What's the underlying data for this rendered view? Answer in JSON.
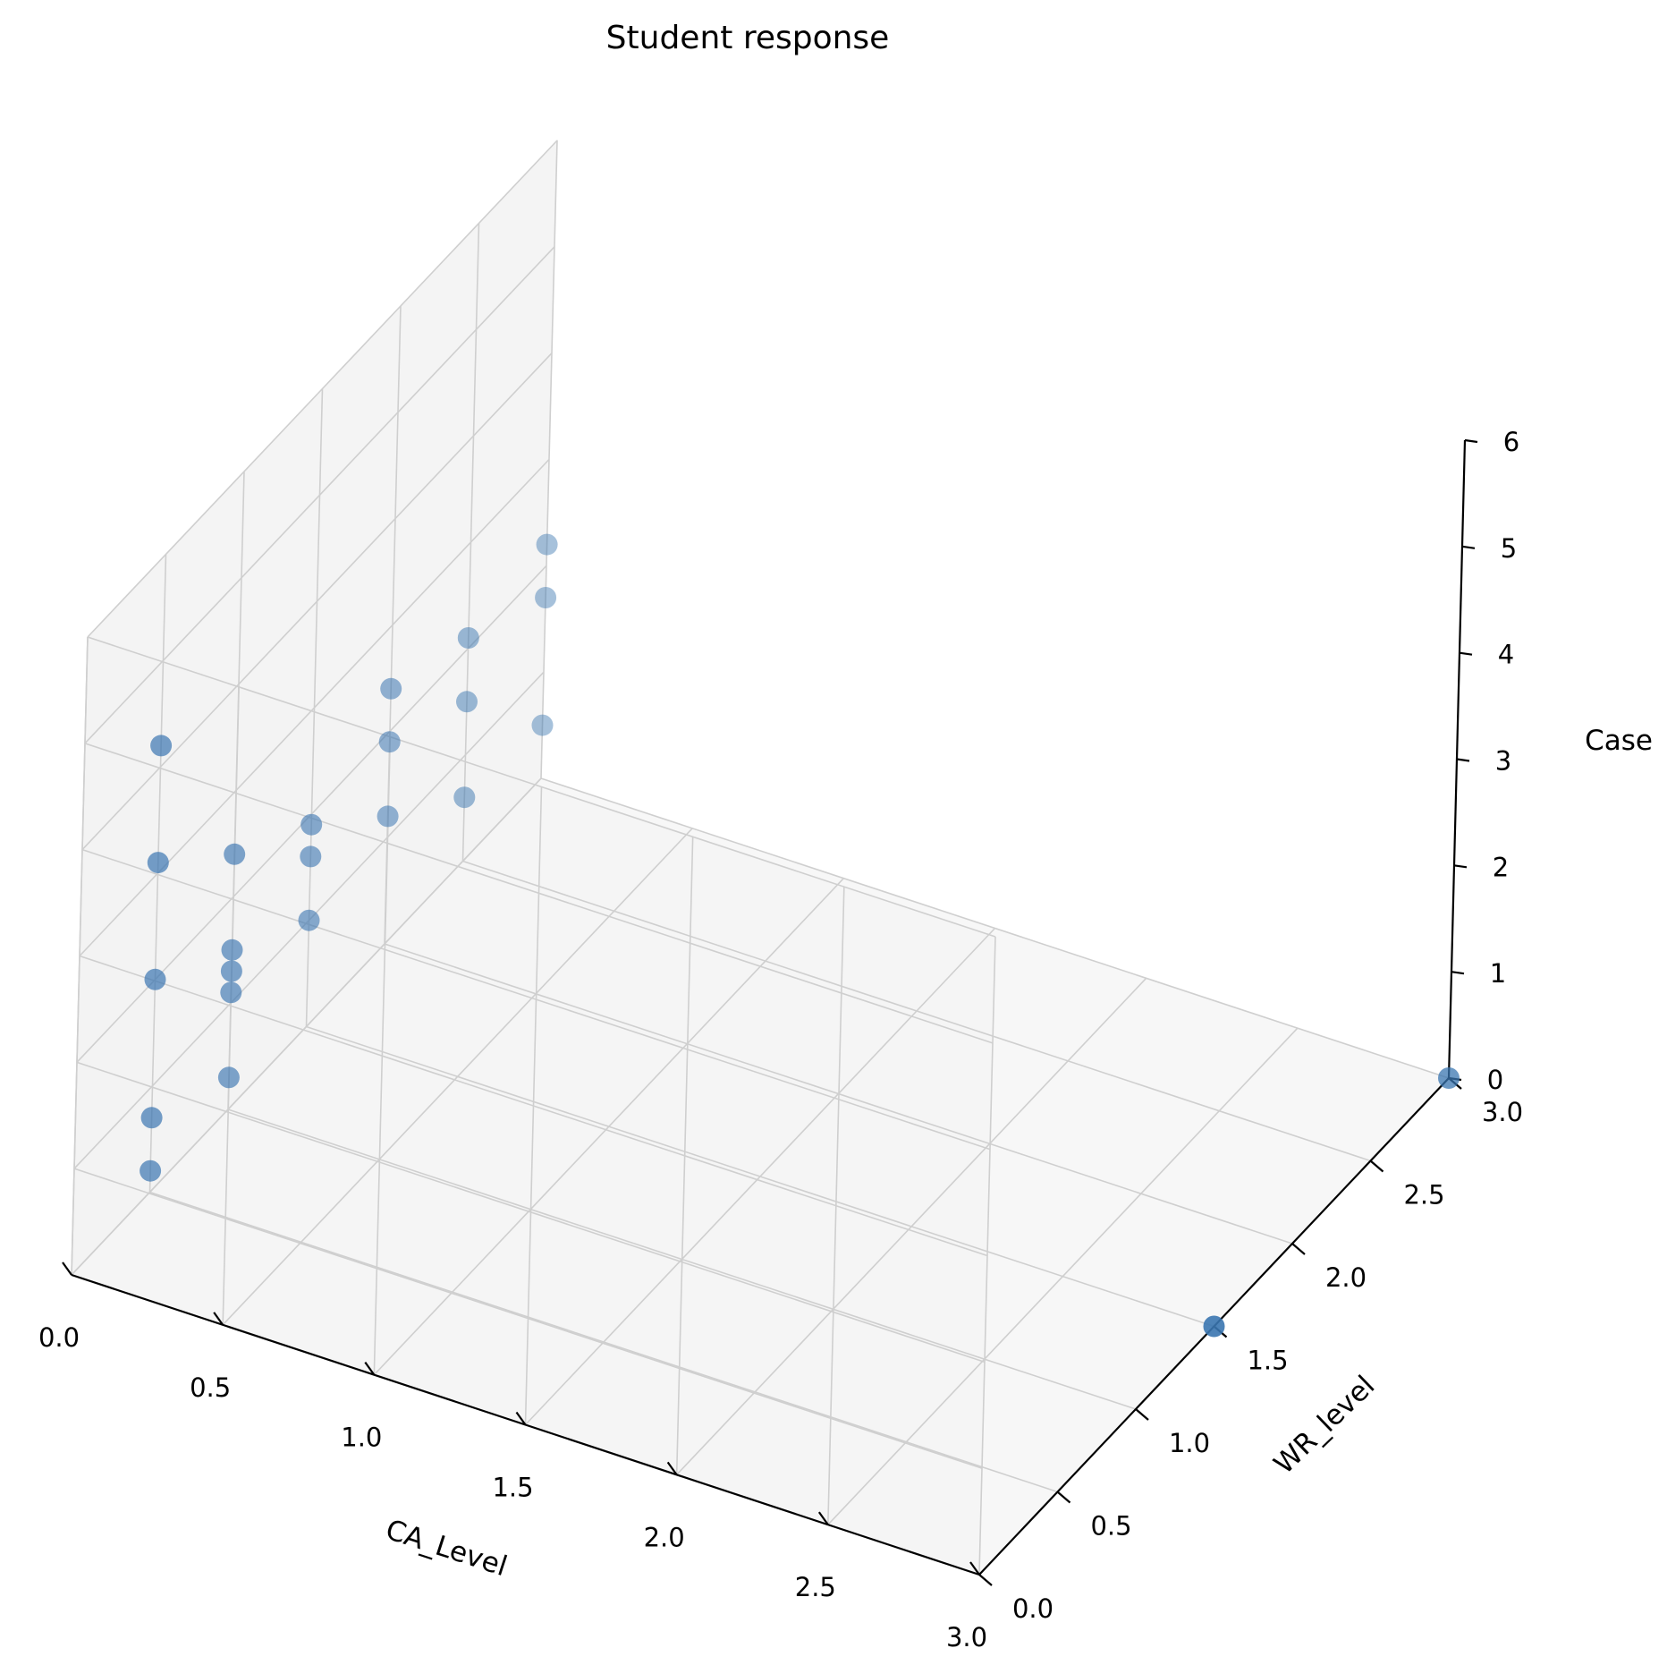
{
  "chart_data": {
    "type": "scatter",
    "projection": "3d",
    "title": "Student response",
    "xlabel": "CA_Level",
    "ylabel": "WR_level",
    "zlabel": "Case",
    "xlim": [
      0,
      3
    ],
    "ylim": [
      0,
      3
    ],
    "zlim": [
      0,
      6
    ],
    "xticks": [
      "0.0",
      "0.5",
      "1.0",
      "1.5",
      "2.0",
      "2.5",
      "3.0"
    ],
    "yticks": [
      "0.0",
      "0.5",
      "1.0",
      "1.5",
      "2.0",
      "2.5",
      "3.0"
    ],
    "zticks": [
      "0",
      "1",
      "2",
      "3",
      "4",
      "5",
      "6"
    ],
    "grid": true,
    "marker_color": "#3a75b0",
    "points": [
      {
        "x": 0,
        "y": 0.5,
        "z": 4.2
      },
      {
        "x": 0,
        "y": 0.5,
        "z": 3.1
      },
      {
        "x": 0,
        "y": 0.5,
        "z": 2.0
      },
      {
        "x": 0,
        "y": 0.5,
        "z": 0.7
      },
      {
        "x": 0,
        "y": 0.5,
        "z": 0.2
      },
      {
        "x": 0,
        "y": 1.0,
        "z": 2.4
      },
      {
        "x": 0,
        "y": 1.0,
        "z": 1.5
      },
      {
        "x": 0,
        "y": 1.0,
        "z": 1.3
      },
      {
        "x": 0,
        "y": 1.0,
        "z": 1.1
      },
      {
        "x": 0,
        "y": 1.0,
        "z": 0.3
      },
      {
        "x": 0,
        "y": 1.5,
        "z": 1.9
      },
      {
        "x": 0,
        "y": 1.5,
        "z": 1.6
      },
      {
        "x": 0,
        "y": 1.5,
        "z": 1.0
      },
      {
        "x": 0,
        "y": 2.0,
        "z": 2.4
      },
      {
        "x": 0,
        "y": 2.0,
        "z": 1.9
      },
      {
        "x": 0,
        "y": 2.0,
        "z": 1.2
      },
      {
        "x": 0,
        "y": 2.5,
        "z": 2.1
      },
      {
        "x": 0,
        "y": 2.5,
        "z": 1.5
      },
      {
        "x": 0,
        "y": 2.5,
        "z": 0.6
      },
      {
        "x": 0,
        "y": 3.0,
        "z": 2.2
      },
      {
        "x": 0,
        "y": 3.0,
        "z": 1.7
      },
      {
        "x": 0,
        "y": 3.0,
        "z": 0.5
      },
      {
        "x": 3.0,
        "y": 1.5,
        "z": 0.0
      },
      {
        "x": 3.0,
        "y": 3.0,
        "z": 0.0
      }
    ]
  }
}
